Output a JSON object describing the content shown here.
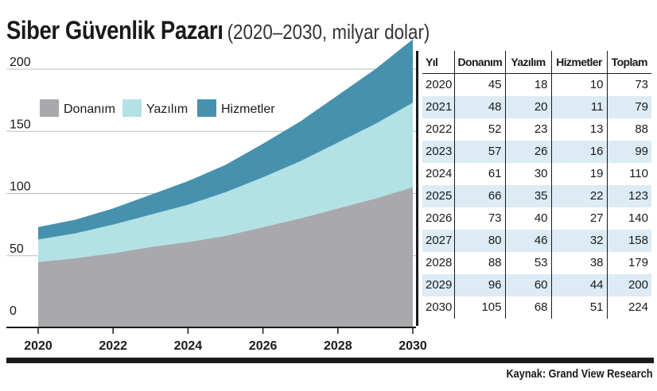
{
  "title": "Siber Güvenlik Pazarı",
  "subtitle": "(2020–2030, milyar dolar)",
  "source": "Kaynak: Grand View Research",
  "colors": {
    "hardware": "#a9a9ad",
    "software": "#b2e2e6",
    "services": "#4691ae",
    "gridline": "#bdbdbd",
    "table_stripe": "#dcebf4"
  },
  "chart_data": {
    "type": "area",
    "stacked": true,
    "x": [
      2020,
      2021,
      2022,
      2023,
      2024,
      2025,
      2026,
      2027,
      2028,
      2029,
      2030
    ],
    "series": [
      {
        "name": "Donanım",
        "values": [
          45,
          48,
          52,
          57,
          61,
          66,
          73,
          80,
          88,
          96,
          105
        ]
      },
      {
        "name": "Yazılım",
        "values": [
          18,
          20,
          23,
          26,
          30,
          35,
          40,
          46,
          53,
          60,
          68
        ]
      },
      {
        "name": "Hizmetler",
        "values": [
          10,
          11,
          13,
          16,
          19,
          22,
          27,
          32,
          38,
          44,
          51
        ]
      }
    ],
    "x_ticks": [
      "2020",
      "2022",
      "2024",
      "2026",
      "2028",
      "2030"
    ],
    "y_ticks": [
      "0",
      "50",
      "100",
      "150",
      "200"
    ],
    "ylim": [
      0,
      224
    ],
    "xlim": [
      2020,
      2030
    ],
    "grid": true,
    "legend": "top-left",
    "xlabel": "",
    "ylabel": ""
  },
  "table": {
    "headers": [
      "Yıl",
      "Donanım",
      "Yazılım",
      "Hizmetler",
      "Toplam"
    ],
    "rows": [
      [
        "2020",
        "45",
        "18",
        "10",
        "73"
      ],
      [
        "2021",
        "48",
        "20",
        "11",
        "79"
      ],
      [
        "2022",
        "52",
        "23",
        "13",
        "88"
      ],
      [
        "2023",
        "57",
        "26",
        "16",
        "99"
      ],
      [
        "2024",
        "61",
        "30",
        "19",
        "110"
      ],
      [
        "2025",
        "66",
        "35",
        "22",
        "123"
      ],
      [
        "2026",
        "73",
        "40",
        "27",
        "140"
      ],
      [
        "2027",
        "80",
        "46",
        "32",
        "158"
      ],
      [
        "2028",
        "88",
        "53",
        "38",
        "179"
      ],
      [
        "2029",
        "96",
        "60",
        "44",
        "200"
      ],
      [
        "2030",
        "105",
        "68",
        "51",
        "224"
      ]
    ]
  }
}
